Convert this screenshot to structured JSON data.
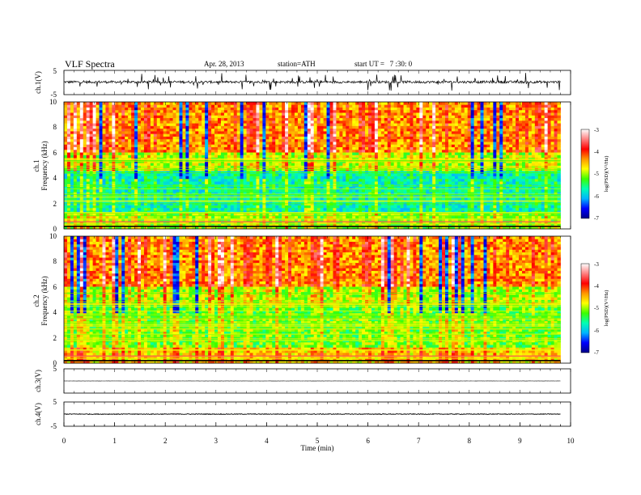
{
  "header": {
    "title": "VLF Spectra",
    "date": "Apr. 28, 2013",
    "station": "station=ATH",
    "start_time": "start UT =   7 :30: 0"
  },
  "x_axis": {
    "label": "Time (min)",
    "range": [
      0,
      10
    ],
    "ticks": [
      "0",
      "1",
      "2",
      "3",
      "4",
      "5",
      "6",
      "7",
      "8",
      "9",
      "10"
    ]
  },
  "colorbar": {
    "label": "log(PSD)(V²/Hz)",
    "range": [
      -7,
      -3
    ],
    "ticks": [
      "-3",
      "-4",
      "-5",
      "-6",
      "-7"
    ],
    "colors": [
      "#000088",
      "#0000ff",
      "#00b4ff",
      "#00ffb4",
      "#3cff00",
      "#ffff00",
      "#ff9600",
      "#ff0000",
      "#ff8080",
      "#ffffff"
    ]
  },
  "chart_data": [
    {
      "type": "line",
      "name": "ch1-waveform",
      "ylabel": "ch.1(V)",
      "ylim": [
        -5,
        5
      ],
      "yticks": [
        "5",
        "-5"
      ],
      "x_range_min": [
        0,
        9.8
      ],
      "baseline": 0.2,
      "noise_amplitude": 0.5,
      "spike_amplitude": 3.5
    },
    {
      "type": "heatmap",
      "name": "ch1-spectrogram",
      "ylabel_top": "ch.1",
      "ylabel": "Frequency (kHz)",
      "ylim": [
        0,
        10
      ],
      "yticks": [
        "0",
        "2",
        "4",
        "6",
        "8",
        "10"
      ],
      "x_range_min": [
        0,
        9.8
      ],
      "z_range": [
        -7,
        -3
      ]
    },
    {
      "type": "heatmap",
      "name": "ch2-spectrogram",
      "ylabel_top": "ch.2",
      "ylabel": "Frequency (kHz)",
      "ylim": [
        0,
        10
      ],
      "yticks": [
        "0",
        "2",
        "4",
        "6",
        "8",
        "10"
      ],
      "x_range_min": [
        0,
        9.8
      ],
      "z_range": [
        -7,
        -3
      ]
    },
    {
      "type": "line",
      "name": "ch3-waveform",
      "ylabel": "ch.3(V)",
      "ylim": [
        -5,
        5
      ],
      "yticks": [
        "5"
      ],
      "x_range_min": [
        0,
        9.8
      ],
      "baseline": 0,
      "noise_amplitude": 0.05
    },
    {
      "type": "line",
      "name": "ch4-waveform",
      "ylabel": "ch.4(V)",
      "ylim": [
        -5,
        5
      ],
      "yticks": [
        "5",
        "-5"
      ],
      "x_range_min": [
        0,
        9.8
      ],
      "baseline": 0,
      "noise_amplitude": 0.15
    }
  ]
}
